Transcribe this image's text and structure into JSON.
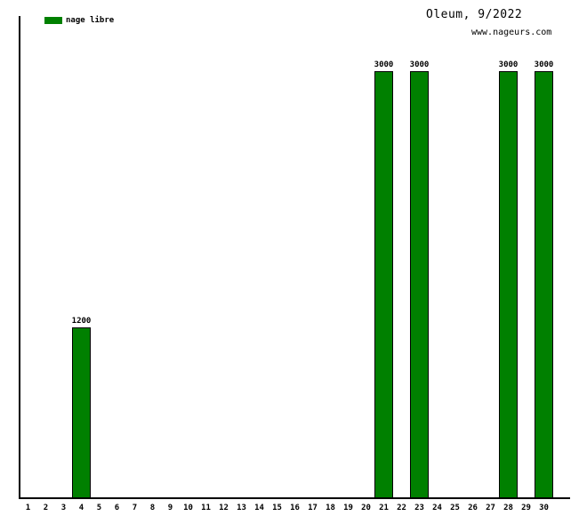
{
  "header": {
    "title": "Oleum, 9/2022",
    "watermark": "www.nageurs.com"
  },
  "legend": [
    {
      "label": "nage libre",
      "color": "#008000"
    }
  ],
  "chart_data": {
    "type": "bar",
    "title": "Oleum, 9/2022",
    "subtitle": "www.nageurs.com",
    "xlabel": "",
    "ylabel": "",
    "categories": [
      1,
      2,
      3,
      4,
      5,
      6,
      7,
      8,
      9,
      10,
      11,
      12,
      13,
      14,
      15,
      16,
      17,
      18,
      19,
      20,
      21,
      22,
      23,
      24,
      25,
      26,
      27,
      28,
      29,
      30
    ],
    "series": [
      {
        "name": "nage libre",
        "color": "#008000",
        "values": [
          0,
          0,
          0,
          1200,
          0,
          0,
          0,
          0,
          0,
          0,
          0,
          0,
          0,
          0,
          0,
          0,
          0,
          0,
          0,
          0,
          3000,
          0,
          3000,
          0,
          0,
          0,
          0,
          3000,
          0,
          3000
        ]
      }
    ],
    "value_labels": {
      "4": "1200",
      "21": "3000",
      "23": "3000",
      "28": "3000",
      "30": "3000"
    },
    "ylim": [
      0,
      3390
    ],
    "grid": false,
    "y_ticks_shown": false,
    "legend_position": "top-left",
    "bar_border_color": "#000000",
    "axis_color": "#000000",
    "background_color": "#ffffff"
  }
}
